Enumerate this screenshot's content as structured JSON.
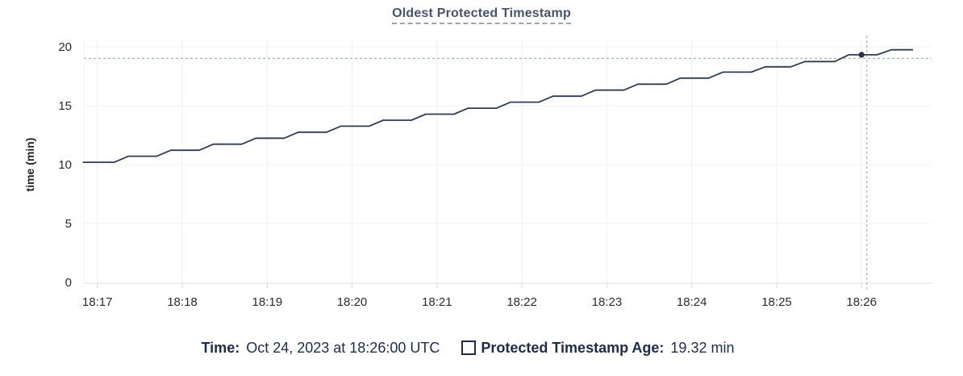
{
  "chart": {
    "title": "Oldest Protected Timestamp"
  },
  "chart_data": {
    "type": "line",
    "title": "Oldest Protected Timestamp",
    "xlabel": "",
    "ylabel": "time (min)",
    "ylim": [
      0,
      20
    ],
    "y_ticks": [
      0,
      5,
      10,
      15,
      20
    ],
    "x_ticks": [
      {
        "t": 0,
        "label": "18:17"
      },
      {
        "t": 60,
        "label": "18:18"
      },
      {
        "t": 120,
        "label": "18:19"
      },
      {
        "t": 180,
        "label": "18:20"
      },
      {
        "t": 240,
        "label": "18:21"
      },
      {
        "t": 300,
        "label": "18:22"
      },
      {
        "t": 360,
        "label": "18:23"
      },
      {
        "t": 420,
        "label": "18:24"
      },
      {
        "t": 480,
        "label": "18:25"
      },
      {
        "t": 540,
        "label": "18:26"
      }
    ],
    "x_domain_seconds_from_1817": [
      -10,
      589
    ],
    "grid": true,
    "legend_position": "bottom",
    "series": [
      {
        "name": "Protected Timestamp Age",
        "unit": "min",
        "color": "#2b3c5c",
        "points": [
          [
            -10,
            10.2
          ],
          [
            12,
            10.2
          ],
          [
            22,
            10.71
          ],
          [
            42,
            10.71
          ],
          [
            52,
            11.22
          ],
          [
            72,
            11.22
          ],
          [
            82,
            11.73
          ],
          [
            102,
            11.73
          ],
          [
            112,
            12.24
          ],
          [
            132,
            12.24
          ],
          [
            142,
            12.75
          ],
          [
            162,
            12.75
          ],
          [
            172,
            13.26
          ],
          [
            192,
            13.26
          ],
          [
            202,
            13.77
          ],
          [
            222,
            13.77
          ],
          [
            232,
            14.28
          ],
          [
            252,
            14.28
          ],
          [
            262,
            14.79
          ],
          [
            282,
            14.79
          ],
          [
            292,
            15.3
          ],
          [
            312,
            15.3
          ],
          [
            322,
            15.81
          ],
          [
            342,
            15.81
          ],
          [
            352,
            16.32
          ],
          [
            372,
            16.32
          ],
          [
            382,
            16.83
          ],
          [
            402,
            16.83
          ],
          [
            412,
            17.34
          ],
          [
            432,
            17.34
          ],
          [
            442,
            17.85
          ],
          [
            462,
            17.85
          ],
          [
            472,
            18.3
          ],
          [
            490,
            18.3
          ],
          [
            500,
            18.75
          ],
          [
            521,
            18.75
          ],
          [
            531,
            19.32
          ],
          [
            551,
            19.32
          ],
          [
            561,
            19.75
          ],
          [
            576,
            19.75
          ]
        ]
      }
    ],
    "hover": {
      "t": 540,
      "value": 19.32,
      "time_label": "Oct 24, 2023 at 18:26:00 UTC",
      "value_label": "19.32 min"
    }
  },
  "footer": {
    "time_label": "Time:",
    "time_value": "Oct 24, 2023 at 18:26:00 UTC",
    "series_label": "Protected Timestamp Age:",
    "series_value": "19.32 min"
  },
  "colors": {
    "title_text": "#46536e",
    "title_underline": "#97a4ba",
    "legend_text": "#1b2b52",
    "line": "#2b3c5c",
    "hover_dot": "#26334f",
    "crosshair": "#a2b3c2",
    "grid": "#f0f0f0",
    "axis": "#dedede",
    "tick_mark": "#d6d6d6",
    "tick_text": "#2b2b2b",
    "axis_title_text": "#242424"
  }
}
